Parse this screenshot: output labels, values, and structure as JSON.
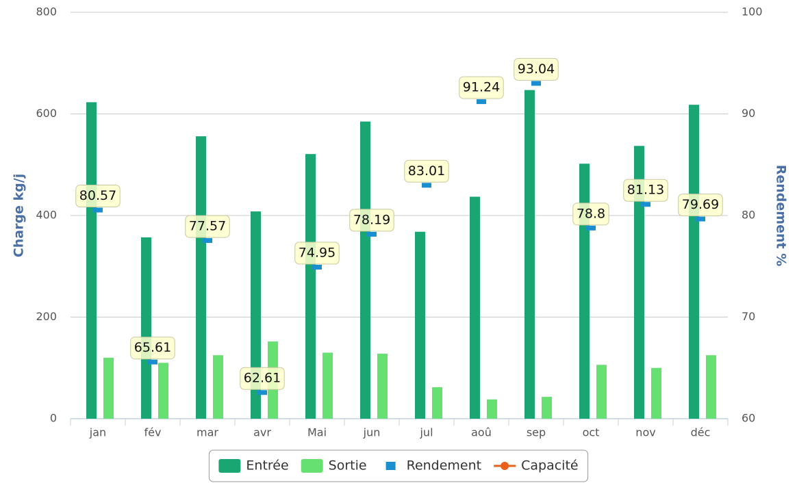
{
  "chart_data": {
    "type": "bar",
    "categories": [
      "jan",
      "fév",
      "mar",
      "avr",
      "Mai",
      "jun",
      "jul",
      "aoû",
      "sep",
      "oct",
      "nov",
      "déc"
    ],
    "series": [
      {
        "name": "Entrée",
        "type": "bar",
        "color": "#1aa673",
        "values": [
          623,
          357,
          556,
          408,
          521,
          585,
          368,
          437,
          647,
          502,
          537,
          618
        ]
      },
      {
        "name": "Sortie",
        "type": "bar",
        "color": "#66e070",
        "values": [
          120,
          110,
          125,
          152,
          130,
          128,
          62,
          38,
          43,
          106,
          100,
          125
        ]
      },
      {
        "name": "Rendement",
        "type": "marker",
        "axis": "y2",
        "color": "#1a8fd0",
        "values": [
          80.57,
          65.61,
          77.57,
          62.61,
          74.95,
          78.19,
          83.01,
          91.24,
          93.04,
          78.8,
          81.13,
          79.69
        ]
      },
      {
        "name": "Capacité",
        "type": "line",
        "axis": "y2",
        "color": "#e8601c",
        "values": [
          null,
          null,
          null,
          null,
          null,
          null,
          null,
          null,
          null,
          null,
          null,
          null
        ]
      }
    ],
    "ylabel": "Charge kg/j",
    "y2label": "Rendement %",
    "ylim": [
      0,
      800
    ],
    "yticks": [
      0,
      200,
      400,
      600,
      800
    ],
    "y2lim": [
      60,
      100
    ],
    "y2ticks": [
      60,
      70,
      80,
      90,
      100
    ],
    "grid": true,
    "legend": "bottom"
  }
}
